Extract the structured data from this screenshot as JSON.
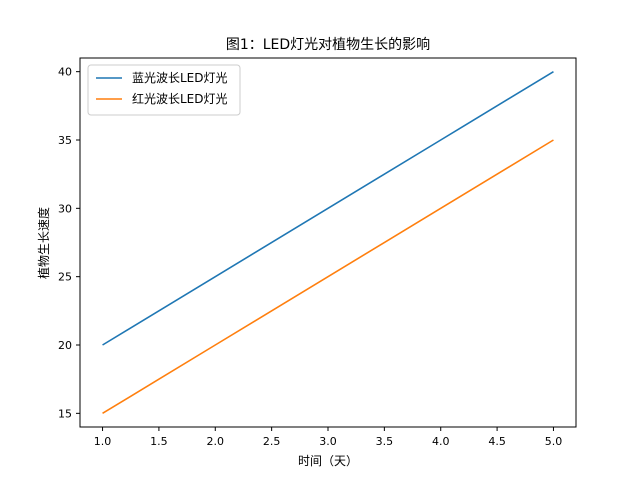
{
  "chart_data": {
    "type": "line",
    "title": "图1：LED灯光对植物生长的影响",
    "xlabel": "时间（天）",
    "ylabel": "植物生长速度",
    "x": [
      1,
      2,
      3,
      4,
      5
    ],
    "xlim": [
      0.8,
      5.2
    ],
    "ylim": [
      14,
      41
    ],
    "xticks": [
      1.0,
      1.5,
      2.0,
      2.5,
      3.0,
      3.5,
      4.0,
      4.5,
      5.0
    ],
    "xtick_labels": [
      "1.0",
      "1.5",
      "2.0",
      "2.5",
      "3.0",
      "3.5",
      "4.0",
      "4.5",
      "5.0"
    ],
    "yticks": [
      15,
      20,
      25,
      30,
      35,
      40
    ],
    "ytick_labels": [
      "15",
      "20",
      "25",
      "30",
      "35",
      "40"
    ],
    "grid": false,
    "legend_position": "top-left",
    "series": [
      {
        "name": "蓝光波长LED灯光",
        "values": [
          20,
          25,
          30,
          35,
          40
        ],
        "color": "#1f77b4"
      },
      {
        "name": "红光波长LED灯光",
        "values": [
          15,
          20,
          25,
          30,
          35
        ],
        "color": "#ff7f0e"
      }
    ]
  }
}
